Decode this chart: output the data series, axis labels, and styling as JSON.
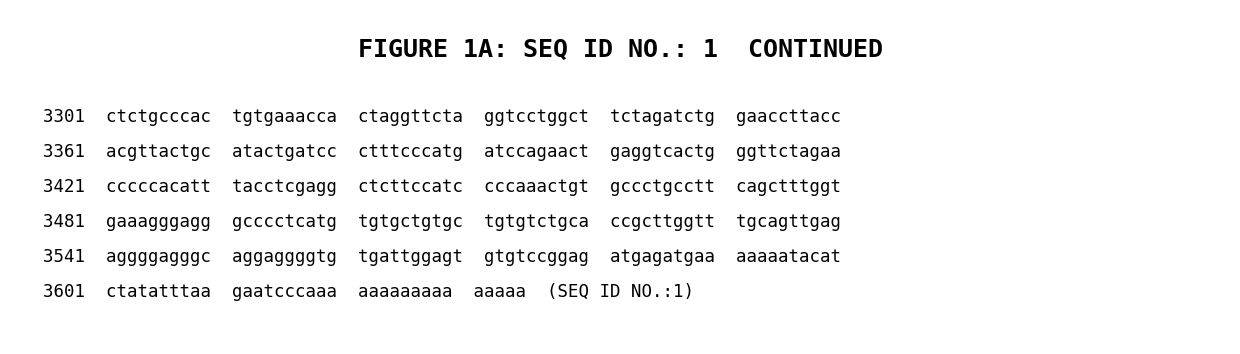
{
  "title": "FIGURE 1A: SEQ ID NO.: 1  CONTINUED",
  "title_fontsize": 18,
  "title_fontweight": "bold",
  "background_color": "#ffffff",
  "text_color": "#000000",
  "sequence_lines": [
    "3301  ctctgcccac  tgtgaaacca  ctaggttcta  ggtcctggct  tctagatctg  gaaccttacc",
    "3361  acgttactgc  atactgatcc  ctttcccatg  atccagaact  gaggtcactg  ggttctagaa",
    "3421  cccccacatt  tacctcgagg  ctcttccatc  cccaaactgt  gccctgcctt  cagctttggt",
    "3481  gaaagggagg  gcccctcatg  tgtgctgtgc  tgtgtctgca  ccgcttggtt  tgcagttgag",
    "3541  aggggagggc  aggaggggtg  tgattggagt  gtgtccggag  atgagatgaa  aaaaatacat",
    "3601  ctatatttaa  gaatcccaaa  aaaaaaaaa  aaaaa  (SEQ ID NO.:1)"
  ],
  "sequence_fontsize": 12.5,
  "sequence_font": "monospace",
  "fig_width": 12.4,
  "fig_height": 3.54,
  "dpi": 100
}
